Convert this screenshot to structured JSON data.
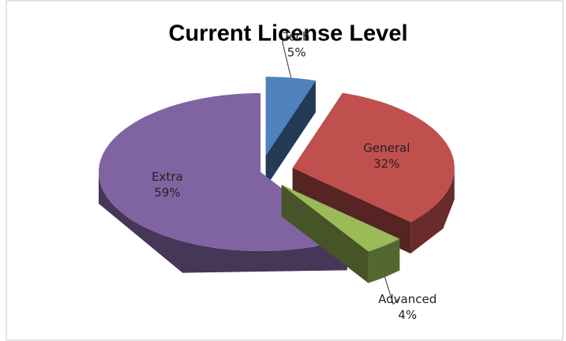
{
  "chart_data": {
    "type": "pie",
    "title": "Current License Level",
    "categories": [
      "Tech",
      "General",
      "Advanced",
      "Extra"
    ],
    "values": [
      5,
      32,
      4,
      59
    ],
    "value_labels": [
      "5%",
      "32%",
      "4%",
      "59%"
    ],
    "colors": [
      "#4f81bd",
      "#c0504d",
      "#9bbb59",
      "#8064a2"
    ],
    "three_d": true
  }
}
